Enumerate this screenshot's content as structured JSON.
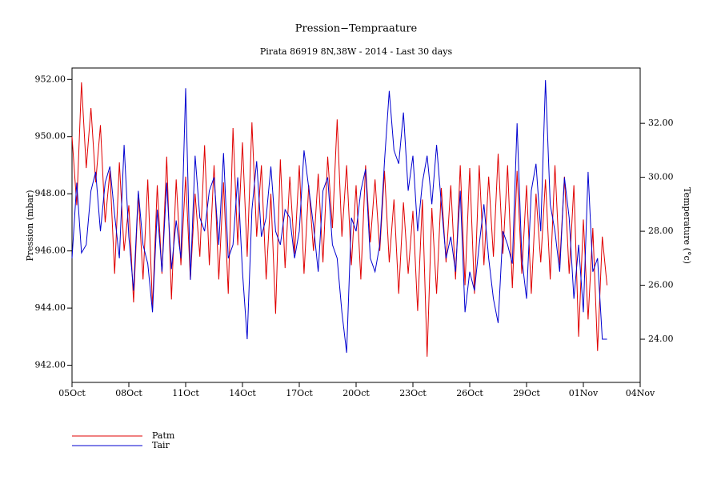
{
  "chart_data": {
    "type": "line",
    "title": "Pression−Tempraature",
    "subtitle": "Pirata 86919 8N,38W - 2014 - Last 30 days",
    "y_label": "Pression (mbar)",
    "y2_label": "Temperature (°c)",
    "xlim": [
      0,
      30
    ],
    "xticks": [
      {
        "value": 0,
        "label": "05Oct"
      },
      {
        "value": 3,
        "label": "08Oct"
      },
      {
        "value": 6,
        "label": "11Oct"
      },
      {
        "value": 9,
        "label": "14Oct"
      },
      {
        "value": 12,
        "label": "17Oct"
      },
      {
        "value": 15,
        "label": "20Oct"
      },
      {
        "value": 18,
        "label": "23Oct"
      },
      {
        "value": 21,
        "label": "26Oct"
      },
      {
        "value": 24,
        "label": "29Oct"
      },
      {
        "value": 27,
        "label": "01Nov"
      },
      {
        "value": 30,
        "label": "04Nov"
      }
    ],
    "ylim": [
      941.4,
      952.4
    ],
    "yticks": [
      {
        "value": 942,
        "label": "942.00"
      },
      {
        "value": 944,
        "label": "944.00"
      },
      {
        "value": 946,
        "label": "946.00"
      },
      {
        "value": 948,
        "label": "948.00"
      },
      {
        "value": 950,
        "label": "950.00"
      },
      {
        "value": 952,
        "label": "952.00"
      }
    ],
    "y2lim": [
      22.4,
      34.05
    ],
    "y2ticks": [
      {
        "value": 24,
        "label": "24.00"
      },
      {
        "value": 26,
        "label": "26.00"
      },
      {
        "value": 28,
        "label": "28.00"
      },
      {
        "value": 30,
        "label": "30.00"
      },
      {
        "value": 32,
        "label": "32.00"
      }
    ],
    "x": [
      0,
      0.25,
      0.5,
      0.75,
      1,
      1.25,
      1.5,
      1.75,
      2,
      2.25,
      2.5,
      2.75,
      3,
      3.25,
      3.5,
      3.75,
      4,
      4.25,
      4.5,
      4.75,
      5,
      5.25,
      5.5,
      5.75,
      6,
      6.25,
      6.5,
      6.75,
      7,
      7.25,
      7.5,
      7.75,
      8,
      8.25,
      8.5,
      8.75,
      9,
      9.25,
      9.5,
      9.75,
      10,
      10.25,
      10.5,
      10.75,
      11,
      11.25,
      11.5,
      11.75,
      12,
      12.25,
      12.5,
      12.75,
      13,
      13.25,
      13.5,
      13.75,
      14,
      14.25,
      14.5,
      14.75,
      15,
      15.25,
      15.5,
      15.75,
      16,
      16.25,
      16.5,
      16.75,
      17,
      17.25,
      17.5,
      17.75,
      18,
      18.25,
      18.5,
      18.75,
      19,
      19.25,
      19.5,
      19.75,
      20,
      20.25,
      20.5,
      20.75,
      21,
      21.25,
      21.5,
      21.75,
      22,
      22.25,
      22.5,
      22.75,
      23,
      23.25,
      23.5,
      23.75,
      24,
      24.25,
      24.5,
      24.75,
      25,
      25.25,
      25.5,
      25.75,
      26,
      26.25,
      26.5,
      26.75,
      27,
      27.25,
      27.5,
      27.75,
      28,
      28.25
    ],
    "series": [
      {
        "name": "Patm",
        "color": "#e00000",
        "axis": "y",
        "values": [
          950.0,
          947.6,
          951.9,
          948.9,
          951.0,
          948.4,
          950.4,
          947.0,
          948.8,
          945.2,
          949.1,
          946.0,
          947.6,
          944.2,
          948.0,
          945.0,
          948.5,
          944.0,
          948.3,
          945.2,
          949.3,
          944.3,
          948.5,
          945.5,
          948.6,
          945.0,
          948.0,
          945.8,
          949.7,
          945.5,
          949.0,
          945.0,
          948.4,
          944.5,
          950.3,
          946.2,
          949.8,
          945.8,
          950.5,
          946.5,
          949.0,
          945.0,
          948.0,
          943.8,
          949.2,
          945.4,
          948.6,
          945.9,
          949.0,
          945.2,
          948.3,
          946.0,
          948.7,
          945.6,
          949.3,
          946.8,
          950.6,
          946.5,
          949.0,
          945.5,
          948.3,
          945.0,
          949.0,
          946.3,
          948.5,
          946.0,
          948.8,
          945.6,
          947.8,
          944.5,
          947.7,
          945.2,
          947.4,
          943.9,
          947.8,
          942.3,
          947.5,
          944.5,
          948.2,
          945.6,
          948.3,
          945.0,
          949.0,
          944.8,
          948.9,
          944.5,
          949.0,
          945.5,
          948.6,
          945.8,
          949.4,
          945.9,
          949.0,
          944.7,
          948.8,
          945.2,
          948.3,
          944.5,
          948.0,
          945.6,
          948.5,
          945.0,
          949.0,
          945.5,
          948.6,
          945.2,
          948.3,
          943.0,
          947.1,
          943.6,
          946.8,
          942.5,
          946.5,
          944.8
        ]
      },
      {
        "name": "Tair",
        "color": "#0000d0",
        "axis": "y2",
        "values": [
          27.0,
          29.8,
          27.2,
          27.5,
          29.5,
          30.2,
          28.0,
          29.8,
          30.4,
          28.6,
          27.0,
          31.2,
          27.8,
          25.8,
          29.5,
          27.5,
          26.8,
          25.0,
          28.8,
          26.5,
          29.8,
          26.6,
          28.4,
          27.0,
          33.3,
          26.2,
          30.8,
          28.5,
          28.0,
          29.5,
          30.0,
          27.5,
          30.9,
          27.0,
          27.5,
          30.0,
          26.5,
          24.0,
          28.8,
          30.6,
          27.8,
          28.5,
          30.4,
          28.0,
          27.5,
          28.8,
          28.5,
          27.0,
          28.0,
          31.0,
          29.6,
          28.2,
          26.5,
          29.5,
          30.0,
          27.5,
          27.0,
          25.0,
          23.5,
          28.5,
          28.0,
          29.5,
          30.3,
          27.0,
          26.5,
          27.5,
          30.6,
          33.2,
          31.0,
          30.5,
          32.4,
          29.5,
          30.8,
          28.0,
          29.8,
          30.8,
          29.0,
          31.2,
          29.0,
          27.0,
          27.8,
          26.5,
          29.5,
          25.0,
          26.5,
          25.8,
          27.5,
          29.0,
          27.0,
          25.5,
          24.6,
          28.0,
          27.5,
          26.8,
          32.0,
          27.0,
          25.5,
          29.5,
          30.5,
          28.0,
          33.6,
          29.0,
          28.0,
          26.5,
          30.0,
          28.5,
          25.5,
          27.5,
          25.0,
          30.2,
          26.5,
          27.0,
          24.0,
          24.0
        ]
      }
    ]
  }
}
